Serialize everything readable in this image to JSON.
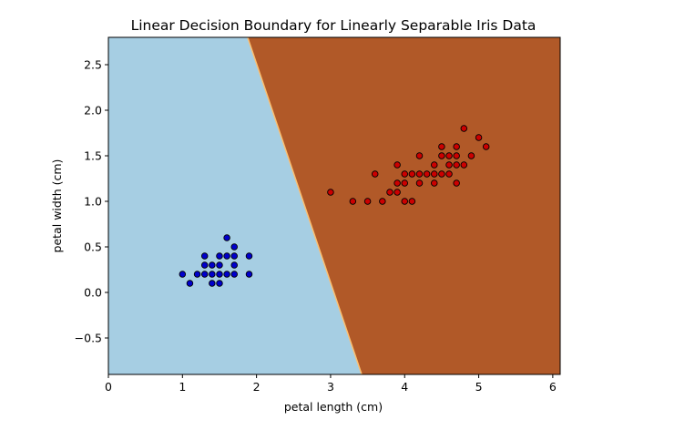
{
  "chart_data": {
    "type": "scatter",
    "title": "Linear Decision Boundary for Linearly Separable Iris Data",
    "xlabel": "petal length (cm)",
    "ylabel": "petal width (cm)",
    "xlim": [
      0,
      6.1
    ],
    "ylim": [
      -0.9,
      2.8
    ],
    "x_ticks": [
      0,
      1,
      2,
      3,
      4,
      5,
      6
    ],
    "x_tick_labels": [
      "0",
      "1",
      "2",
      "3",
      "4",
      "5",
      "6"
    ],
    "y_ticks": [
      -0.5,
      0.0,
      0.5,
      1.0,
      1.5,
      2.0,
      2.5
    ],
    "y_tick_labels": [
      "−0.5",
      "0.0",
      "0.5",
      "1.0",
      "1.5",
      "2.0",
      "2.5"
    ],
    "grid": false,
    "decision_boundary": {
      "points": [
        [
          1.88,
          2.8
        ],
        [
          3.42,
          -0.9
        ]
      ],
      "left_region_color": "#a6cee3",
      "right_region_color": "#b15928",
      "edge_color": "#fdbf6f"
    },
    "series": [
      {
        "color": "#0000cc",
        "points": [
          [
            1.0,
            0.2
          ],
          [
            1.1,
            0.1
          ],
          [
            1.2,
            0.2
          ],
          [
            1.3,
            0.2
          ],
          [
            1.3,
            0.3
          ],
          [
            1.3,
            0.4
          ],
          [
            1.4,
            0.1
          ],
          [
            1.4,
            0.2
          ],
          [
            1.4,
            0.3
          ],
          [
            1.5,
            0.1
          ],
          [
            1.5,
            0.2
          ],
          [
            1.5,
            0.3
          ],
          [
            1.5,
            0.4
          ],
          [
            1.6,
            0.2
          ],
          [
            1.6,
            0.4
          ],
          [
            1.6,
            0.6
          ],
          [
            1.7,
            0.2
          ],
          [
            1.7,
            0.3
          ],
          [
            1.7,
            0.4
          ],
          [
            1.7,
            0.5
          ],
          [
            1.9,
            0.2
          ],
          [
            1.9,
            0.4
          ]
        ]
      },
      {
        "color": "#cc0000",
        "points": [
          [
            3.0,
            1.1
          ],
          [
            3.3,
            1.0
          ],
          [
            3.5,
            1.0
          ],
          [
            3.6,
            1.3
          ],
          [
            3.7,
            1.0
          ],
          [
            3.8,
            1.1
          ],
          [
            3.9,
            1.1
          ],
          [
            3.9,
            1.2
          ],
          [
            3.9,
            1.4
          ],
          [
            4.0,
            1.0
          ],
          [
            4.0,
            1.2
          ],
          [
            4.0,
            1.3
          ],
          [
            4.1,
            1.0
          ],
          [
            4.1,
            1.3
          ],
          [
            4.2,
            1.2
          ],
          [
            4.2,
            1.3
          ],
          [
            4.2,
            1.5
          ],
          [
            4.3,
            1.3
          ],
          [
            4.4,
            1.2
          ],
          [
            4.4,
            1.3
          ],
          [
            4.4,
            1.4
          ],
          [
            4.5,
            1.3
          ],
          [
            4.5,
            1.5
          ],
          [
            4.5,
            1.6
          ],
          [
            4.6,
            1.3
          ],
          [
            4.6,
            1.4
          ],
          [
            4.6,
            1.5
          ],
          [
            4.7,
            1.2
          ],
          [
            4.7,
            1.4
          ],
          [
            4.7,
            1.5
          ],
          [
            4.7,
            1.6
          ],
          [
            4.8,
            1.4
          ],
          [
            4.8,
            1.8
          ],
          [
            4.9,
            1.5
          ],
          [
            5.0,
            1.7
          ],
          [
            5.1,
            1.6
          ]
        ]
      }
    ]
  }
}
